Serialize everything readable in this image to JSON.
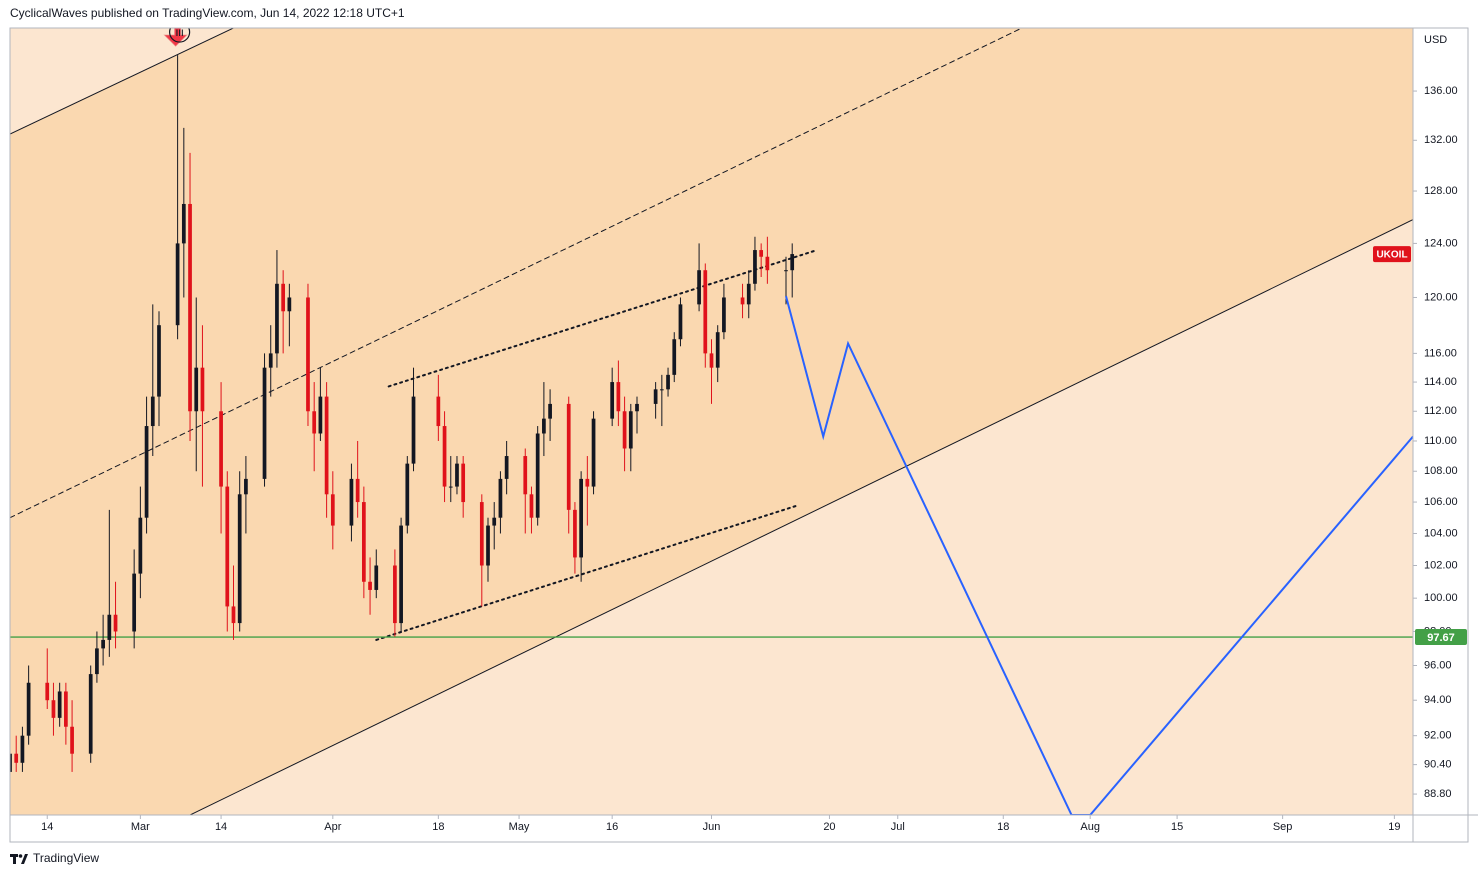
{
  "header": "CyclicalWaves published on TradingView.com, Jun 14, 2022 12:18 UTC+1",
  "footer": "TradingView",
  "chart_data": {
    "type": "candlestick",
    "currency": "USD",
    "symbol": "UKOIL",
    "log_scale": true,
    "up_color": "#131722",
    "down_color": "#e0121b",
    "xlim": [
      "2022-02-08",
      "2022-09-22"
    ],
    "ylim": [
      87.68,
      141.3
    ],
    "yticks": [
      {
        "value": 88.8,
        "label": "88.80"
      },
      {
        "value": 90.4,
        "label": "90.40"
      },
      {
        "value": 92,
        "label": "92.00"
      },
      {
        "value": 94,
        "label": "94.00"
      },
      {
        "value": 96,
        "label": "96.00"
      },
      {
        "value": 98,
        "label": "98.00"
      },
      {
        "value": 100,
        "label": "100.00"
      },
      {
        "value": 102,
        "label": "102.00"
      },
      {
        "value": 104,
        "label": "104.00"
      },
      {
        "value": 106,
        "label": "106.00"
      },
      {
        "value": 108,
        "label": "108.00"
      },
      {
        "value": 110,
        "label": "110.00"
      },
      {
        "value": 112,
        "label": "112.00"
      },
      {
        "value": 114,
        "label": "114.00"
      },
      {
        "value": 116,
        "label": "116.00"
      },
      {
        "value": 120,
        "label": "120.00"
      },
      {
        "value": 124,
        "label": "124.00"
      },
      {
        "value": 128,
        "label": "128.00"
      },
      {
        "value": 132,
        "label": "132.00"
      },
      {
        "value": 136,
        "label": "136.00"
      }
    ],
    "xticks": [
      {
        "value": "2022-02-14",
        "label": "14"
      },
      {
        "value": "2022-03-01",
        "label": "Mar"
      },
      {
        "value": "2022-03-14",
        "label": "14"
      },
      {
        "value": "2022-04-01",
        "label": "Apr"
      },
      {
        "value": "2022-04-18",
        "label": "18"
      },
      {
        "value": "2022-05-01",
        "label": "May"
      },
      {
        "value": "2022-05-16",
        "label": "16"
      },
      {
        "value": "2022-06-01",
        "label": "Jun"
      },
      {
        "value": "2022-06-20",
        "label": "20"
      },
      {
        "value": "2022-07-01",
        "label": "Jul"
      },
      {
        "value": "2022-07-18",
        "label": "18"
      },
      {
        "value": "2022-08-01",
        "label": "Aug"
      },
      {
        "value": "2022-08-15",
        "label": "15"
      },
      {
        "value": "2022-09-01",
        "label": "Sep"
      },
      {
        "value": "2022-09-19",
        "label": "19"
      }
    ],
    "x": [
      "2022-02-08",
      "2022-02-09",
      "2022-02-10",
      "2022-02-11",
      "2022-02-14",
      "2022-02-15",
      "2022-02-16",
      "2022-02-17",
      "2022-02-18",
      "2022-02-21",
      "2022-02-22",
      "2022-02-23",
      "2022-02-24",
      "2022-02-25",
      "2022-02-28",
      "2022-03-01",
      "2022-03-02",
      "2022-03-03",
      "2022-03-04",
      "2022-03-07",
      "2022-03-08",
      "2022-03-09",
      "2022-03-10",
      "2022-03-11",
      "2022-03-14",
      "2022-03-15",
      "2022-03-16",
      "2022-03-17",
      "2022-03-18",
      "2022-03-21",
      "2022-03-22",
      "2022-03-23",
      "2022-03-24",
      "2022-03-25",
      "2022-03-28",
      "2022-03-29",
      "2022-03-30",
      "2022-03-31",
      "2022-04-01",
      "2022-04-04",
      "2022-04-05",
      "2022-04-06",
      "2022-04-07",
      "2022-04-08",
      "2022-04-11",
      "2022-04-12",
      "2022-04-13",
      "2022-04-14",
      "2022-04-18",
      "2022-04-19",
      "2022-04-20",
      "2022-04-21",
      "2022-04-22",
      "2022-04-25",
      "2022-04-26",
      "2022-04-27",
      "2022-04-28",
      "2022-04-29",
      "2022-05-02",
      "2022-05-03",
      "2022-05-04",
      "2022-05-05",
      "2022-05-06",
      "2022-05-09",
      "2022-05-10",
      "2022-05-11",
      "2022-05-12",
      "2022-05-13",
      "2022-05-16",
      "2022-05-17",
      "2022-05-18",
      "2022-05-19",
      "2022-05-20",
      "2022-05-23",
      "2022-05-24",
      "2022-05-25",
      "2022-05-26",
      "2022-05-27",
      "2022-05-30",
      "2022-05-31",
      "2022-06-01",
      "2022-06-02",
      "2022-06-03",
      "2022-06-06",
      "2022-06-07",
      "2022-06-08",
      "2022-06-09",
      "2022-06-10",
      "2022-06-13",
      "2022-06-14"
    ],
    "open": [
      90,
      91,
      90.5,
      92,
      95,
      94,
      93,
      94.5,
      92.5,
      91,
      95.5,
      97,
      97.5,
      99,
      98,
      101.5,
      105,
      111,
      113,
      118,
      124,
      127,
      112,
      115,
      112,
      107,
      99.5,
      98.5,
      106.5,
      107.5,
      115,
      116,
      121,
      119,
      120,
      112,
      110.5,
      113,
      106.5,
      104.5,
      107.5,
      106,
      101,
      100.5,
      102,
      98.5,
      104.5,
      108.5,
      113,
      111,
      107,
      107,
      108.5,
      106,
      102,
      104.5,
      105,
      107.5,
      109,
      106.5,
      105,
      110.5,
      111.5,
      112.5,
      105.5,
      102.5,
      107.5,
      107,
      111.5,
      114,
      112,
      109.5,
      112,
      112.5,
      113.5,
      113.5,
      114.5,
      117,
      119.5,
      122,
      116,
      115,
      117.5,
      120,
      119.5,
      121,
      123.5,
      123,
      122,
      122
    ],
    "high": [
      91.5,
      92,
      92.5,
      96,
      97,
      95,
      95,
      95,
      94,
      96,
      98,
      99,
      105.5,
      101,
      103,
      107,
      113,
      119.5,
      119,
      139,
      133,
      131,
      120,
      118,
      114,
      108,
      102,
      108,
      109,
      116,
      118,
      123.5,
      122,
      121,
      121,
      114,
      115,
      114,
      108,
      108.5,
      110,
      107,
      102.5,
      103,
      103,
      105,
      109,
      115,
      114.5,
      112,
      109,
      109,
      109,
      106.5,
      105,
      106,
      108,
      110,
      109.5,
      107,
      111,
      114,
      113.5,
      113,
      106,
      108,
      109,
      112,
      115,
      115.5,
      113,
      112.5,
      113,
      114,
      114.5,
      115,
      117.5,
      120,
      124,
      122.5,
      117,
      118,
      121,
      121,
      122,
      124.5,
      124,
      124.5,
      123,
      124
    ],
    "low": [
      89.5,
      90,
      90,
      91.5,
      93.5,
      92,
      92.5,
      91.5,
      90,
      90.5,
      95,
      96,
      96.5,
      97,
      97,
      100,
      104,
      109,
      111,
      117,
      120,
      110,
      108,
      107,
      104,
      98,
      97.5,
      98,
      104,
      107,
      113,
      115,
      116,
      116.5,
      111,
      108,
      110,
      105,
      103,
      103.5,
      105,
      100,
      99,
      100,
      97.7,
      98,
      104,
      108,
      110,
      106,
      106,
      106.5,
      105,
      99.5,
      101,
      103,
      104,
      106.5,
      104,
      104,
      104.5,
      109,
      110,
      104,
      101.5,
      101,
      104.5,
      106.5,
      111,
      111,
      108,
      108,
      110.5,
      111.5,
      111,
      113,
      114,
      116.5,
      119,
      115,
      112.5,
      114,
      117,
      118.5,
      118.5,
      120.5,
      121.5,
      121,
      119.5,
      120
    ],
    "close": [
      91,
      90.5,
      92,
      95,
      94,
      93,
      94.5,
      92.5,
      91,
      95.5,
      97,
      97.5,
      99,
      98,
      101.5,
      105,
      111,
      113,
      118,
      124,
      127,
      112,
      115,
      112,
      107,
      99.5,
      98.5,
      106.5,
      107.5,
      115,
      116,
      121,
      119,
      120,
      112,
      110.5,
      113,
      106.5,
      104.5,
      107.5,
      106,
      101,
      100.5,
      102,
      98.5,
      104.5,
      108.5,
      113,
      111,
      107,
      107,
      108.5,
      106,
      102,
      104.5,
      105,
      107.5,
      109,
      106.5,
      105,
      110.5,
      111.5,
      112.5,
      105.5,
      102.5,
      107.5,
      107,
      111.5,
      114,
      112,
      109.5,
      112,
      112.5,
      113.5,
      113.5,
      114.5,
      117,
      119.5,
      122,
      116,
      115,
      117.5,
      120,
      119.5,
      121,
      123.5,
      123,
      122,
      122,
      123.2
    ],
    "hline": {
      "value": 97.67,
      "color": "#43a047"
    },
    "wave_label": {
      "text": "iii",
      "x": "2022-03-07"
    },
    "channel": {
      "upper": [
        [
          "2022-02-08",
          132.5
        ],
        [
          "2022-03-16",
          141.3
        ]
      ],
      "lower": [
        [
          "2022-03-09",
          87.68
        ],
        [
          "2022-09-22",
          125.8
        ]
      ],
      "fill": "#fad8b0",
      "outside": "#fce6d0"
    },
    "trendlines": [
      {
        "style": "dashed",
        "points": [
          [
            "2022-02-08",
            105.0
          ],
          [
            "2022-07-21",
            141.3
          ]
        ]
      },
      {
        "style": "dotted",
        "points": [
          [
            "2022-04-10",
            113.7
          ],
          [
            "2022-06-18",
            123.5
          ]
        ]
      },
      {
        "style": "dotted",
        "points": [
          [
            "2022-04-08",
            97.5
          ],
          [
            "2022-06-15",
            105.8
          ]
        ]
      }
    ],
    "projection": {
      "color": "#2962ff",
      "points": [
        [
          "2022-06-13",
          120.1
        ],
        [
          "2022-06-19",
          110.3
        ],
        [
          "2022-06-23",
          116.7
        ],
        [
          "2022-07-29",
          87.68
        ],
        [
          "2022-08-01",
          87.68
        ],
        [
          "2022-09-22",
          110.3
        ]
      ]
    }
  }
}
